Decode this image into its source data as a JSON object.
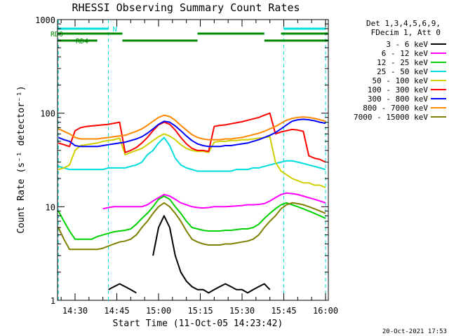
{
  "chart_data": {
    "type": "line",
    "title": "RHESSI Observing Summary Count Rates",
    "xlabel": "Start Time (11-Oct-05 14:23:42)",
    "ylabel": "Count Rate (s⁻¹ detector⁻¹)",
    "y_scale": "log",
    "ylim": [
      1,
      1000
    ],
    "xlim": [
      "14:23:42",
      "16:01:00"
    ],
    "x_ticks": [
      "14:30",
      "14:45",
      "15:00",
      "15:15",
      "15:30",
      "15:45",
      "16:00"
    ],
    "y_ticks": [
      "1",
      "10",
      "100",
      "1000"
    ],
    "legend_header": [
      "Det 1,3,4,5,6,9,",
      "FDecim 1, Att 0"
    ],
    "legend_position": "right",
    "timestamp": "20-Oct-2021 17:53",
    "x": [
      "14:24",
      "14:26",
      "14:28",
      "14:30",
      "14:32",
      "14:34",
      "14:36",
      "14:38",
      "14:40",
      "14:42",
      "14:44",
      "14:46",
      "14:48",
      "14:50",
      "14:52",
      "14:54",
      "14:56",
      "14:58",
      "15:00",
      "15:02",
      "15:04",
      "15:06",
      "15:08",
      "15:10",
      "15:12",
      "15:14",
      "15:16",
      "15:18",
      "15:20",
      "15:22",
      "15:24",
      "15:26",
      "15:28",
      "15:30",
      "15:32",
      "15:34",
      "15:36",
      "15:38",
      "15:40",
      "15:42",
      "15:44",
      "15:46",
      "15:48",
      "15:50",
      "15:52",
      "15:54",
      "15:56",
      "15:58",
      "16:00"
    ],
    "series": [
      {
        "name": "3 - 6 keV",
        "color": "#000000",
        "values": [
          null,
          null,
          null,
          null,
          null,
          null,
          null,
          null,
          null,
          1.3,
          1.4,
          1.5,
          1.4,
          1.3,
          1.2,
          null,
          null,
          3.0,
          6.0,
          8.0,
          6.0,
          3.0,
          2.0,
          1.6,
          1.4,
          1.3,
          1.3,
          1.2,
          1.3,
          1.4,
          1.5,
          1.4,
          1.3,
          1.3,
          1.2,
          1.3,
          1.4,
          1.5,
          1.3,
          null,
          null,
          null,
          null,
          null,
          null,
          null,
          null,
          null,
          null
        ]
      },
      {
        "name": "6 - 12 keV",
        "color": "#ff00ff",
        "values": [
          null,
          null,
          null,
          null,
          null,
          null,
          null,
          null,
          9.5,
          9.8,
          10.0,
          10.0,
          10.0,
          10.0,
          10.0,
          10.0,
          10.5,
          11.5,
          12.5,
          13.5,
          13.0,
          12.0,
          11.0,
          10.5,
          10.0,
          9.8,
          9.7,
          9.8,
          10.0,
          10.0,
          10.0,
          10.1,
          10.2,
          10.3,
          10.5,
          10.5,
          10.6,
          10.8,
          11.5,
          12.5,
          13.5,
          14.0,
          13.8,
          13.5,
          13.0,
          12.5,
          12.0,
          11.5,
          11.0
        ]
      },
      {
        "name": "12 - 25 keV",
        "color": "#00d000",
        "values": [
          9.0,
          7.0,
          5.5,
          4.5,
          4.5,
          4.5,
          4.5,
          4.8,
          5.0,
          5.2,
          5.4,
          5.5,
          5.6,
          5.8,
          6.5,
          7.5,
          8.5,
          10.0,
          12.0,
          13.0,
          12.0,
          10.0,
          8.5,
          7.0,
          6.0,
          5.8,
          5.6,
          5.5,
          5.5,
          5.5,
          5.6,
          5.6,
          5.7,
          5.8,
          5.8,
          6.0,
          6.5,
          7.5,
          8.5,
          9.5,
          10.5,
          11.0,
          10.5,
          10.0,
          9.5,
          9.0,
          8.5,
          8.0,
          7.5
        ]
      },
      {
        "name": "25 - 50 keV",
        "color": "#00dddd",
        "values": [
          27,
          26,
          25,
          25,
          25,
          25,
          25,
          25,
          25,
          26,
          26,
          26,
          26,
          27,
          28,
          30,
          36,
          40,
          48,
          55,
          45,
          33,
          28,
          26,
          25,
          24,
          24,
          24,
          24,
          24,
          24,
          24,
          25,
          25,
          25,
          26,
          26,
          27,
          28,
          29,
          30,
          31,
          31,
          30,
          29,
          28,
          27,
          26,
          25
        ]
      },
      {
        "name": "50 - 100 keV",
        "color": "#d0d000",
        "values": [
          25,
          26,
          28,
          40,
          45,
          46,
          47,
          48,
          50,
          51,
          52,
          54,
          36,
          38,
          40,
          42,
          46,
          51,
          56,
          60,
          57,
          52,
          46,
          42,
          40,
          39,
          39,
          38,
          49,
          50,
          50,
          51,
          51,
          52,
          52,
          53,
          54,
          55,
          56,
          30,
          24,
          22,
          20,
          19,
          18,
          18,
          17,
          17,
          16
        ]
      },
      {
        "name": "100 - 300 keV",
        "color": "#ff0000",
        "values": [
          48,
          46,
          44,
          65,
          70,
          72,
          73,
          74,
          75,
          76,
          78,
          80,
          38,
          40,
          43,
          48,
          55,
          65,
          75,
          80,
          76,
          66,
          55,
          47,
          42,
          40,
          40,
          39,
          72,
          74,
          75,
          77,
          79,
          81,
          84,
          87,
          90,
          95,
          100,
          60,
          63,
          65,
          67,
          66,
          64,
          35,
          33,
          32,
          30
        ]
      },
      {
        "name": "300 - 800 keV",
        "color": "#0000ff",
        "values": [
          55,
          52,
          50,
          45,
          44,
          44,
          44,
          44,
          45,
          46,
          47,
          48,
          49,
          51,
          53,
          56,
          61,
          68,
          76,
          82,
          80,
          73,
          65,
          57,
          51,
          47,
          45,
          44,
          44,
          44,
          45,
          45,
          46,
          47,
          48,
          50,
          52,
          55,
          58,
          62,
          68,
          75,
          82,
          85,
          86,
          85,
          83,
          80,
          78
        ]
      },
      {
        "name": "800 - 7000 keV",
        "color": "#ff8800",
        "values": [
          68,
          64,
          60,
          55,
          53,
          53,
          53,
          53,
          54,
          55,
          56,
          57,
          58,
          61,
          64,
          68,
          74,
          82,
          90,
          95,
          92,
          84,
          74,
          66,
          59,
          55,
          53,
          52,
          52,
          52,
          53,
          53,
          54,
          55,
          57,
          59,
          61,
          64,
          68,
          72,
          78,
          84,
          88,
          90,
          91,
          90,
          88,
          85,
          82
        ]
      },
      {
        "name": "7000 - 15000 keV",
        "color": "#7f7f00",
        "values": [
          6.0,
          4.5,
          3.5,
          3.5,
          3.5,
          3.5,
          3.5,
          3.5,
          3.6,
          3.8,
          4.0,
          4.2,
          4.3,
          4.5,
          5.0,
          6.0,
          7.0,
          8.5,
          10.0,
          11.0,
          10.0,
          8.5,
          7.0,
          5.5,
          4.5,
          4.2,
          4.0,
          3.9,
          3.9,
          3.9,
          4.0,
          4.0,
          4.1,
          4.2,
          4.3,
          4.5,
          5.0,
          6.0,
          7.0,
          8.0,
          9.5,
          10.5,
          11.0,
          10.8,
          10.5,
          10.0,
          9.5,
          9.0,
          8.5
        ]
      }
    ],
    "annotations": [
      {
        "label": "RD0",
        "color": "#008800",
        "segments": [
          [
            "14:24",
            "14:47"
          ],
          [
            "15:14",
            "15:38"
          ],
          [
            "15:44",
            "16:01"
          ]
        ]
      },
      {
        "label": "RD4",
        "color": "#008800",
        "segments": [
          [
            "14:24",
            "14:38"
          ],
          [
            "14:47",
            "15:14"
          ],
          [
            "15:38",
            "16:01"
          ]
        ]
      },
      {
        "label": "N",
        "color": "#00dddd",
        "segments": [
          [
            "14:24",
            "14:42"
          ],
          [
            "15:45",
            "16:00"
          ]
        ]
      }
    ]
  }
}
